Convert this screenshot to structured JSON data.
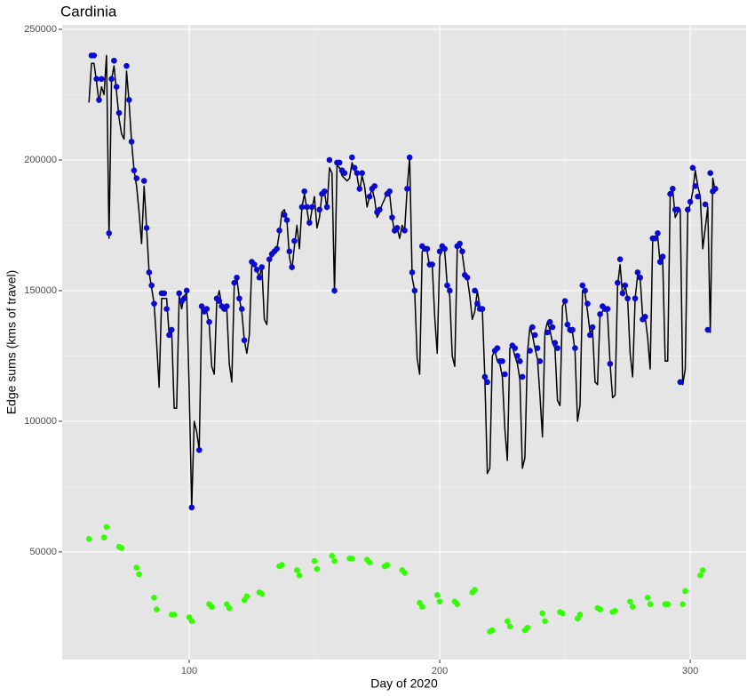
{
  "chart_data": {
    "type": "line",
    "title": "Cardinia",
    "x_label": "Day of 2020",
    "y_label": "Edge sums (kms of travel)",
    "xlim": [
      49.3,
      322.3
    ],
    "ylim": [
      8800,
      251700
    ],
    "xticks": [
      100,
      200,
      300
    ],
    "yticks": [
      50000,
      100000,
      150000,
      200000,
      250000
    ],
    "grid": true,
    "series": [
      {
        "type": "line",
        "color": "#000000",
        "x": [
          60,
          61,
          62,
          63,
          64,
          65,
          66,
          67,
          68,
          69,
          70,
          71,
          72,
          73,
          74,
          75,
          76,
          77,
          78,
          79,
          80,
          81,
          82,
          83,
          84,
          85,
          86,
          87,
          88,
          89,
          90,
          91,
          92,
          93,
          94,
          95,
          96,
          97,
          98,
          99,
          100,
          101,
          102,
          103,
          104,
          105,
          106,
          107,
          108,
          109,
          110,
          111,
          112,
          113,
          114,
          115,
          116,
          117,
          118,
          119,
          120,
          121,
          122,
          123,
          124,
          125,
          126,
          127,
          128,
          129,
          130,
          131,
          132,
          133,
          134,
          135,
          136,
          137,
          138,
          139,
          140,
          141,
          142,
          143,
          144,
          145,
          146,
          147,
          148,
          149,
          150,
          151,
          152,
          153,
          154,
          155,
          156,
          157,
          158,
          159,
          160,
          161,
          162,
          163,
          164,
          165,
          166,
          167,
          168,
          169,
          170,
          171,
          172,
          173,
          174,
          175,
          176,
          177,
          178,
          179,
          180,
          181,
          182,
          183,
          184,
          185,
          186,
          187,
          188,
          189,
          190,
          191,
          192,
          193,
          194,
          195,
          196,
          197,
          198,
          199,
          200,
          201,
          202,
          203,
          204,
          205,
          206,
          207,
          208,
          209,
          210,
          211,
          212,
          213,
          214,
          215,
          216,
          217,
          218,
          219,
          220,
          221,
          222,
          223,
          224,
          225,
          226,
          227,
          228,
          229,
          230,
          231,
          232,
          233,
          234,
          235,
          236,
          237,
          238,
          239,
          240,
          241,
          242,
          243,
          244,
          245,
          246,
          247,
          248,
          249,
          250,
          251,
          252,
          253,
          254,
          255,
          256,
          257,
          258,
          259,
          260,
          261,
          262,
          263,
          264,
          265,
          266,
          267,
          268,
          269,
          270,
          271,
          272,
          273,
          274,
          275,
          276,
          277,
          278,
          279,
          280,
          281,
          282,
          283,
          284,
          285,
          286,
          287,
          288,
          289,
          290,
          291,
          292,
          293,
          294,
          295,
          296,
          297,
          298,
          299,
          300,
          301,
          302,
          303,
          304,
          305,
          306,
          307,
          308,
          309,
          310,
          311
        ],
        "values": [
          222000,
          237000,
          237000,
          230000,
          222000,
          228000,
          225000,
          240000,
          170000,
          231000,
          236000,
          226000,
          216000,
          210000,
          208000,
          234000,
          222000,
          207000,
          196000,
          190000,
          180000,
          168000,
          190000,
          174000,
          157000,
          151000,
          145000,
          130000,
          113000,
          147000,
          147000,
          147000,
          133000,
          135000,
          105000,
          105000,
          148000,
          143000,
          148000,
          149000,
          112000,
          67000,
          100000,
          96000,
          89000,
          143000,
          141000,
          142000,
          137000,
          121000,
          118000,
          146000,
          150000,
          144000,
          143000,
          143000,
          122000,
          115000,
          153000,
          155000,
          147000,
          142000,
          131000,
          126000,
          133000,
          160000,
          160000,
          158000,
          155000,
          159000,
          139000,
          137000,
          161000,
          163000,
          165000,
          166000,
          172000,
          180000,
          181000,
          177000,
          163000,
          158000,
          167000,
          175000,
          166000,
          182000,
          187000,
          181000,
          175000,
          181000,
          186000,
          174000,
          178000,
          187000,
          188000,
          181000,
          197000,
          195000,
          149000,
          198000,
          197000,
          194000,
          193000,
          192000,
          193000,
          199000,
          196000,
          194000,
          188000,
          194000,
          190000,
          182000,
          186000,
          189000,
          185000,
          178000,
          180000,
          183000,
          185000,
          188000,
          187000,
          178000,
          172000,
          174000,
          170000,
          175000,
          173000,
          189000,
          201000,
          155000,
          150000,
          124000,
          118000,
          165000,
          166000,
          165000,
          159000,
          160000,
          140000,
          126000,
          163000,
          166000,
          165000,
          152000,
          148000,
          125000,
          121000,
          166000,
          168000,
          164000,
          157000,
          155000,
          148000,
          139000,
          142000,
          150000,
          144000,
          143000,
          117000,
          80000,
          82000,
          125000,
          127000,
          123000,
          122000,
          117000,
          97000,
          85000,
          128000,
          129000,
          125000,
          122000,
          116000,
          82000,
          86000,
          126000,
          136000,
          133000,
          128000,
          124000,
          110000,
          94000,
          134000,
          138000,
          135000,
          130000,
          128000,
          108000,
          106000,
          144000,
          146000,
          137000,
          134000,
          134000,
          127000,
          100000,
          106000,
          150000,
          149000,
          142000,
          134000,
          135000,
          115000,
          114000,
          141000,
          142000,
          144000,
          141000,
          122000,
          109000,
          110000,
          152000,
          160000,
          148000,
          152000,
          147000,
          126000,
          117000,
          147000,
          156000,
          155000,
          140000,
          140000,
          132000,
          120000,
          169000,
          170000,
          171000,
          160000,
          162000,
          123000,
          123000,
          187000,
          189000,
          178000,
          180000,
          181000,
          114000,
          120000,
          180000,
          183000,
          188000,
          196000,
          190000,
          186000,
          166000,
          174000,
          182000,
          134000,
          193000,
          188000,
          189000
        ]
      },
      {
        "type": "scatter",
        "color": "#0a0ad2",
        "x": [
          61,
          62,
          63,
          64,
          65,
          68,
          69,
          70,
          71,
          72,
          75,
          76,
          77,
          78,
          79,
          82,
          83,
          84,
          85,
          86,
          89,
          90,
          91,
          92,
          93,
          96,
          97,
          98,
          99,
          101,
          104,
          105,
          106,
          107,
          108,
          111,
          112,
          113,
          114,
          115,
          118,
          119,
          120,
          121,
          122,
          125,
          126,
          127,
          128,
          129,
          132,
          133,
          134,
          135,
          136,
          138,
          139,
          140,
          141,
          142,
          145,
          146,
          147,
          148,
          149,
          152,
          153,
          154,
          155,
          156,
          158,
          159,
          160,
          161,
          162,
          165,
          166,
          167,
          168,
          169,
          172,
          173,
          174,
          175,
          176,
          179,
          180,
          181,
          182,
          183,
          186,
          187,
          188,
          189,
          190,
          193,
          194,
          195,
          196,
          197,
          200,
          201,
          202,
          203,
          204,
          207,
          208,
          209,
          210,
          211,
          214,
          215,
          216,
          217,
          218,
          219,
          222,
          223,
          224,
          225,
          226,
          229,
          230,
          231,
          232,
          233,
          236,
          237,
          238,
          239,
          240,
          243,
          244,
          245,
          246,
          247,
          250,
          251,
          252,
          253,
          254,
          257,
          258,
          259,
          260,
          261,
          264,
          265,
          266,
          267,
          268,
          271,
          272,
          273,
          274,
          275,
          278,
          279,
          280,
          281,
          282,
          285,
          286,
          287,
          288,
          289,
          292,
          293,
          294,
          295,
          296,
          299,
          300,
          301,
          302,
          303,
          306,
          307,
          308,
          309,
          310
        ],
        "values": [
          240000,
          240000,
          231000,
          223000,
          231000,
          172000,
          231000,
          238000,
          228000,
          218000,
          236000,
          223000,
          207000,
          196000,
          193000,
          192000,
          174000,
          157000,
          152000,
          145000,
          149000,
          149000,
          143000,
          133000,
          135000,
          149000,
          146000,
          147000,
          150000,
          67000,
          89000,
          144000,
          142000,
          143000,
          138000,
          147000,
          146000,
          144000,
          143000,
          144000,
          153000,
          155000,
          147000,
          143000,
          131000,
          161000,
          160000,
          158000,
          155000,
          159000,
          162000,
          164000,
          165000,
          166000,
          173000,
          179000,
          177000,
          165000,
          159000,
          169000,
          182000,
          188000,
          182000,
          176000,
          182000,
          181000,
          187000,
          188000,
          182000,
          200000,
          150000,
          199000,
          199000,
          196000,
          195000,
          201000,
          197000,
          195000,
          189000,
          195000,
          186000,
          189000,
          190000,
          180000,
          181000,
          187000,
          188000,
          178000,
          173000,
          174000,
          173000,
          189000,
          201000,
          157000,
          150000,
          167000,
          166000,
          166000,
          160000,
          160000,
          165000,
          167000,
          166000,
          152000,
          150000,
          167000,
          168000,
          165000,
          156000,
          155000,
          150000,
          145000,
          143000,
          143000,
          117000,
          115000,
          127000,
          128000,
          123000,
          123000,
          118000,
          129000,
          128000,
          125000,
          123000,
          117000,
          127000,
          136000,
          133000,
          128000,
          123000,
          134000,
          138000,
          136000,
          130000,
          128000,
          146000,
          137000,
          135000,
          135000,
          128000,
          152000,
          150000,
          145000,
          133000,
          136000,
          141000,
          144000,
          143000,
          143000,
          122000,
          153000,
          162000,
          149000,
          152000,
          147000,
          147000,
          157000,
          155000,
          139000,
          140000,
          170000,
          170000,
          172000,
          161000,
          163000,
          187000,
          189000,
          181000,
          181000,
          115000,
          181000,
          184000,
          197000,
          190000,
          186000,
          183000,
          135000,
          195000,
          188000,
          189000
        ]
      },
      {
        "type": "scatter",
        "color": "#33ff00",
        "x": [
          60,
          66,
          67,
          72,
          73,
          79,
          80,
          86,
          87,
          93,
          94,
          100,
          101,
          108,
          109,
          115,
          116,
          122,
          123,
          128,
          129,
          136,
          137,
          143,
          144,
          150,
          151,
          157,
          158,
          164,
          165,
          171,
          172,
          178,
          179,
          185,
          186,
          192,
          193,
          199,
          200,
          206,
          207,
          213,
          214,
          220,
          221,
          227,
          228,
          234,
          235,
          241,
          242,
          248,
          249,
          255,
          256,
          263,
          264,
          269,
          270,
          276,
          277,
          283,
          284,
          290,
          291,
          297,
          298,
          304,
          305
        ],
        "values": [
          55000,
          55500,
          59500,
          52000,
          51500,
          44000,
          41500,
          32500,
          28000,
          26000,
          26000,
          25000,
          23500,
          30000,
          29000,
          30000,
          28500,
          31500,
          33000,
          34500,
          34000,
          44500,
          45000,
          43000,
          41000,
          46500,
          43500,
          48500,
          46500,
          47500,
          47500,
          47000,
          46000,
          44500,
          45000,
          43000,
          42000,
          30500,
          29000,
          33500,
          31000,
          31000,
          30000,
          34500,
          35500,
          19500,
          20000,
          23500,
          21500,
          20000,
          21000,
          26500,
          23500,
          27000,
          26500,
          24500,
          26000,
          28500,
          28000,
          27000,
          27500,
          31000,
          29000,
          32500,
          30000,
          30000,
          30000,
          30000,
          35000,
          41000,
          43000
        ]
      }
    ]
  }
}
